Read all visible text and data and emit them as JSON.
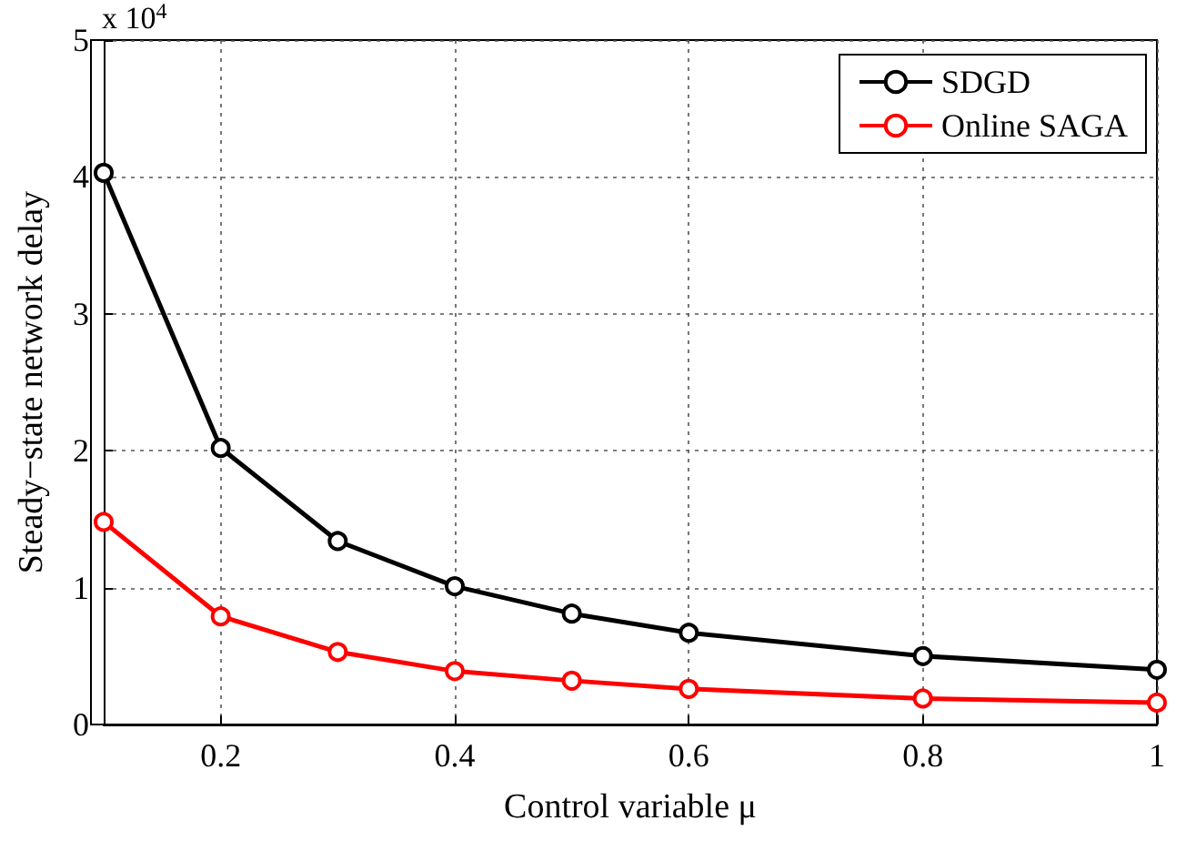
{
  "chart_data": {
    "type": "line",
    "xlabel": "Control variable μ",
    "ylabel": "Steady−state network delay",
    "annotations": [
      "x 10$^{4}$"
    ],
    "x": [
      0.1,
      0.2,
      0.3,
      0.4,
      0.5,
      0.6,
      0.8,
      1.0
    ],
    "series": [
      {
        "name": "SDGD",
        "color": "#000000",
        "values": [
          4.03,
          2.02,
          1.34,
          1.01,
          0.81,
          0.67,
          0.5,
          0.4
        ]
      },
      {
        "name": "Online SAGA",
        "color": "#ff0000",
        "values": [
          1.48,
          0.79,
          0.53,
          0.39,
          0.32,
          0.26,
          0.19,
          0.16
        ]
      }
    ],
    "xlim": [
      0.1,
      1
    ],
    "xticks": [
      0.2,
      0.4,
      0.6,
      0.8,
      1
    ],
    "ylim": [
      0,
      5
    ],
    "yticks": [
      0,
      1,
      2,
      3,
      4,
      5
    ],
    "grid": true,
    "legend": "top right",
    "marker": "circle",
    "line_style": "solid"
  }
}
